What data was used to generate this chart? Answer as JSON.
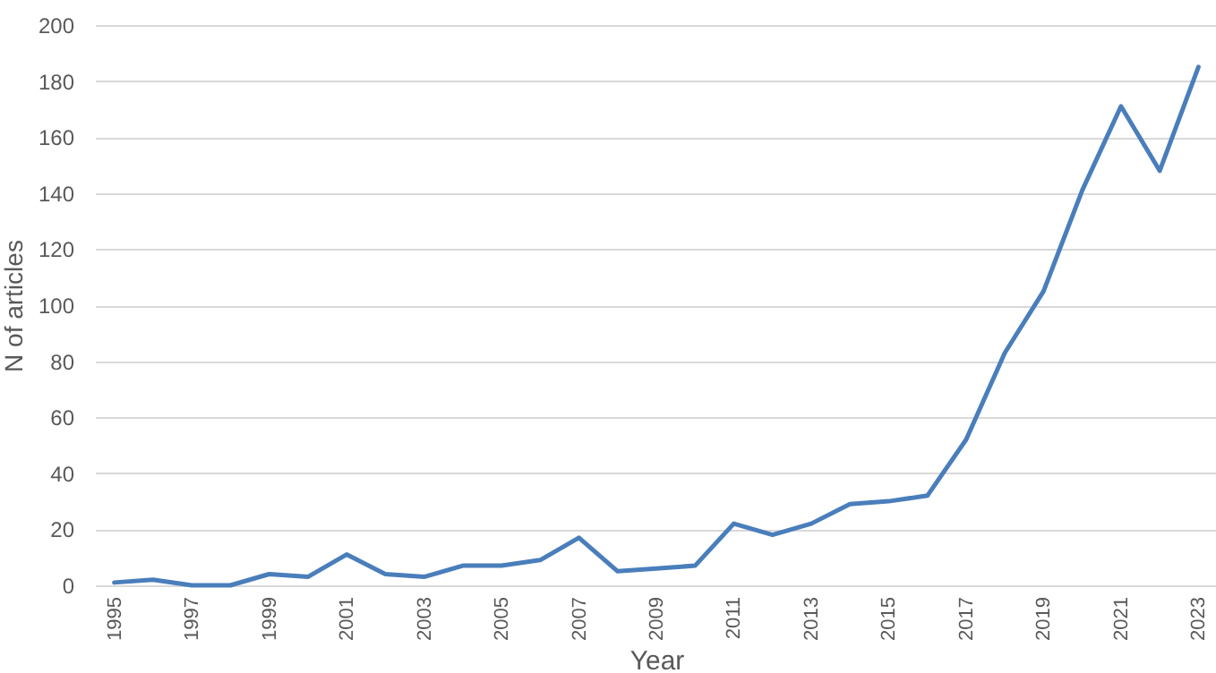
{
  "chart_data": {
    "type": "line",
    "xlabel": "Year",
    "ylabel": "N of articles",
    "x": [
      1995,
      1996,
      1997,
      1998,
      1999,
      2000,
      2001,
      2002,
      2003,
      2004,
      2005,
      2006,
      2007,
      2008,
      2009,
      2010,
      2011,
      2012,
      2013,
      2014,
      2015,
      2016,
      2017,
      2018,
      2019,
      2020,
      2021,
      2022,
      2023
    ],
    "series": [
      {
        "color": "#4a7ebb",
        "values": [
          1,
          2,
          0,
          0,
          4,
          3,
          11,
          4,
          3,
          7,
          7,
          9,
          17,
          5,
          6,
          7,
          22,
          18,
          22,
          29,
          30,
          32,
          52,
          83,
          105,
          141,
          171,
          148,
          185
        ]
      }
    ],
    "xlim": [
      1994.5,
      2023.5
    ],
    "xticks": [
      1995,
      1997,
      1999,
      2001,
      2003,
      2005,
      2007,
      2009,
      2011,
      2013,
      2015,
      2017,
      2019,
      2021,
      2023
    ],
    "ylim": [
      0,
      200
    ],
    "yticks": [
      0,
      20,
      40,
      60,
      80,
      100,
      120,
      140,
      160,
      180,
      200
    ],
    "grid": "y",
    "legend": false,
    "marker": "none",
    "line_style": "solid"
  }
}
